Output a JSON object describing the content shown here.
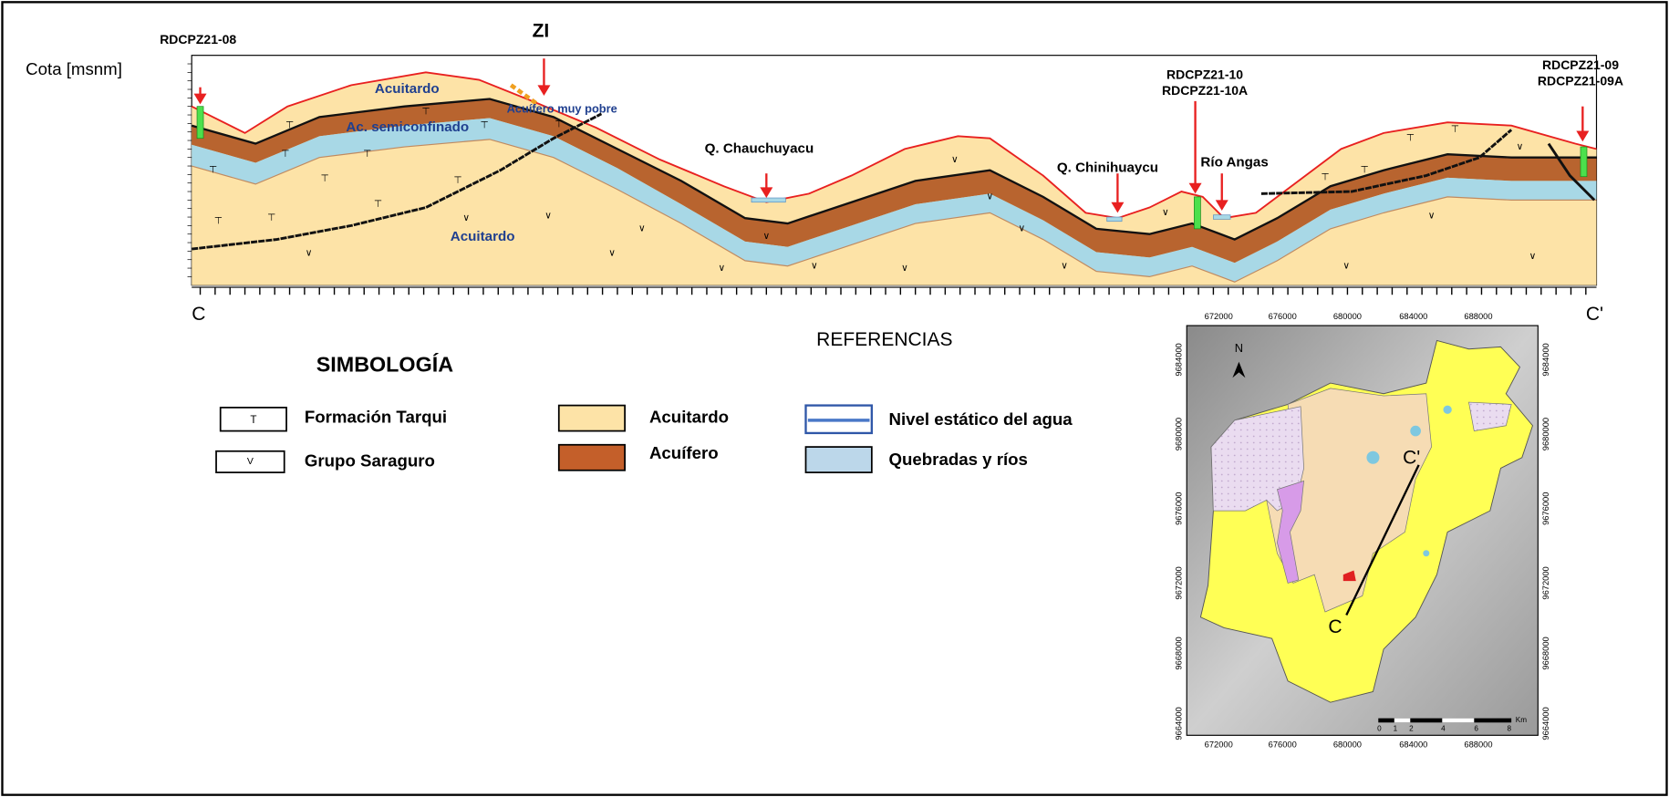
{
  "section": {
    "axis_label": "Cota [msnm]",
    "start": "C",
    "end": "C'",
    "zone": "ZI",
    "units": {
      "upper_aquitard": "Acuitardo",
      "poor_aquifer": "Acuífero muy pobre",
      "semiconfined": "Ac. semiconfinado",
      "lower_aquitard": "Acuitardo"
    },
    "streams": [
      "Q. Chauchuyacu",
      "Q. Chinihuaycu",
      "Río Angas"
    ],
    "wells": [
      "RDCPZ21-08",
      "RDCPZ21-10",
      "RDCPZ21-10A",
      "RDCPZ21-09",
      "RDCPZ21-09A"
    ]
  },
  "references_title": "REFERENCIAS",
  "legend": {
    "title": "SIMBOLOGÍA",
    "items": [
      {
        "symbol": "T",
        "label": "Formación Tarqui"
      },
      {
        "symbol": "V",
        "label": "Grupo Saraguro"
      },
      {
        "label": "Acuitardo"
      },
      {
        "label": "Acuífero"
      },
      {
        "label": "Nivel estático del agua"
      },
      {
        "label": "Quebradas y ríos"
      }
    ]
  },
  "map": {
    "x_ticks": [
      672000,
      676000,
      680000,
      684000,
      688000
    ],
    "y_ticks": [
      9684000,
      9680000,
      9676000,
      9672000,
      9668000,
      9664000
    ],
    "north": "N",
    "start": "C",
    "end": "C'",
    "scale": {
      "ticks": [
        0,
        1,
        2,
        4,
        6,
        8
      ],
      "unit": "Km"
    }
  }
}
